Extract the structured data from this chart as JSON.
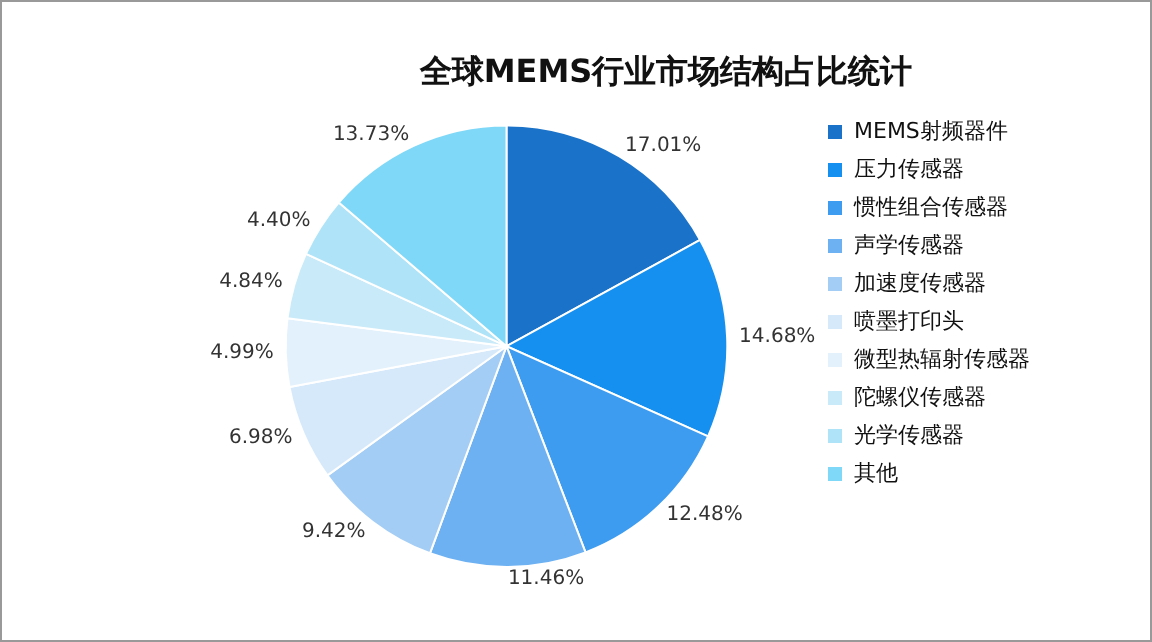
{
  "chart_data": {
    "type": "pie",
    "title": "全球MEMS行业市场结构占比统计",
    "categories": [
      "MEMS射频器件",
      "压力传感器",
      "惯性组合传感器",
      "声学传感器",
      "加速度传感器",
      "喷墨打印头",
      "微型热辐射传感器",
      "陀螺仪传感器",
      "光学传感器",
      "其他"
    ],
    "values": [
      17.01,
      14.68,
      12.48,
      11.46,
      9.42,
      6.98,
      4.99,
      4.84,
      4.4,
      13.73
    ],
    "value_labels": [
      "17.01%",
      "14.68%",
      "12.48%",
      "11.46%",
      "9.42%",
      "6.98%",
      "4.99%",
      "4.84%",
      "4.40%",
      "13.73%"
    ],
    "colors": [
      "#1a73c9",
      "#1590f0",
      "#3d9cf0",
      "#6db1f2",
      "#a3cdf5",
      "#d6e9fb",
      "#e3f1fc",
      "#c9eaf9",
      "#aee3f8",
      "#7fd8f7"
    ],
    "legend": "right"
  }
}
